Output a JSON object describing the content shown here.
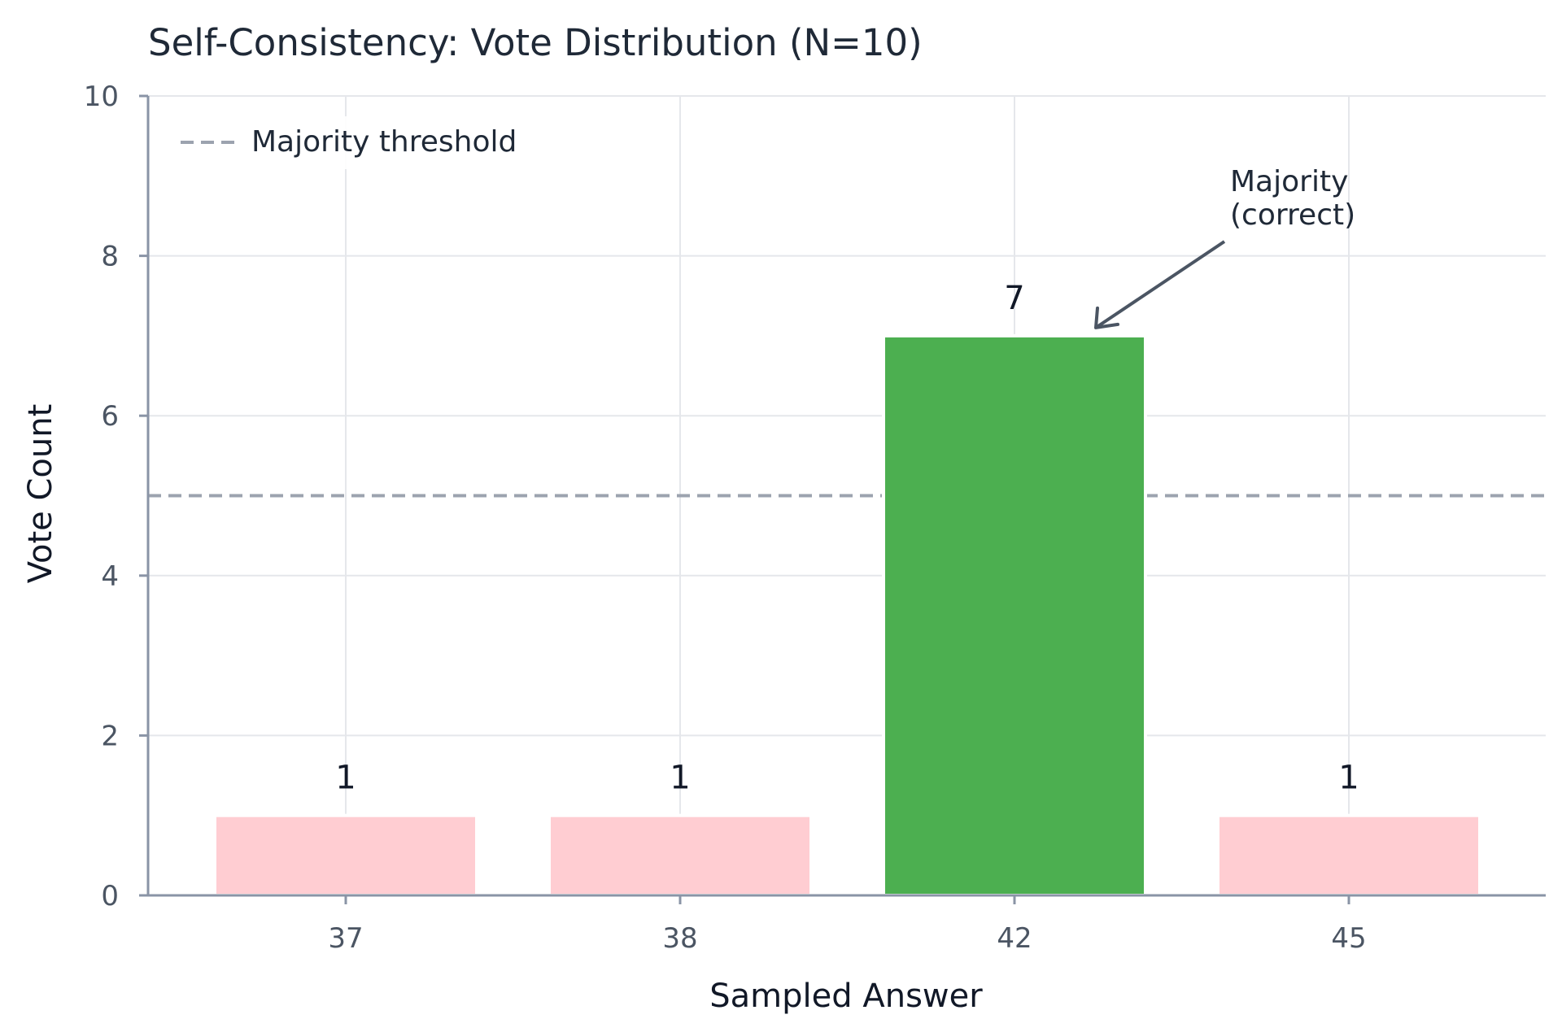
{
  "chart_data": {
    "type": "bar",
    "title": "Self-Consistency: Vote Distribution (N=10)",
    "xlabel": "Sampled Answer",
    "ylabel": "Vote Count",
    "categories": [
      "37",
      "38",
      "42",
      "45"
    ],
    "values": [
      1,
      1,
      7,
      1
    ],
    "data_labels": [
      "1",
      "1",
      "7",
      "1"
    ],
    "ylim": [
      0,
      10
    ],
    "yticks": [
      0,
      2,
      4,
      6,
      8,
      10
    ],
    "grid": true,
    "bar_colors": [
      "#ffcdd2",
      "#ffcdd2",
      "#4caf50",
      "#ffcdd2"
    ],
    "threshold": {
      "value": 5,
      "label": "Majority threshold",
      "color": "#9ca3af",
      "style": "dashed"
    },
    "legend": {
      "position": "top-left",
      "entries": [
        "Majority threshold"
      ]
    },
    "annotation": {
      "lines": [
        "Majority",
        "(correct)"
      ],
      "target_category": "42",
      "target_value": 7,
      "arrow_color": "#4b5563"
    }
  }
}
